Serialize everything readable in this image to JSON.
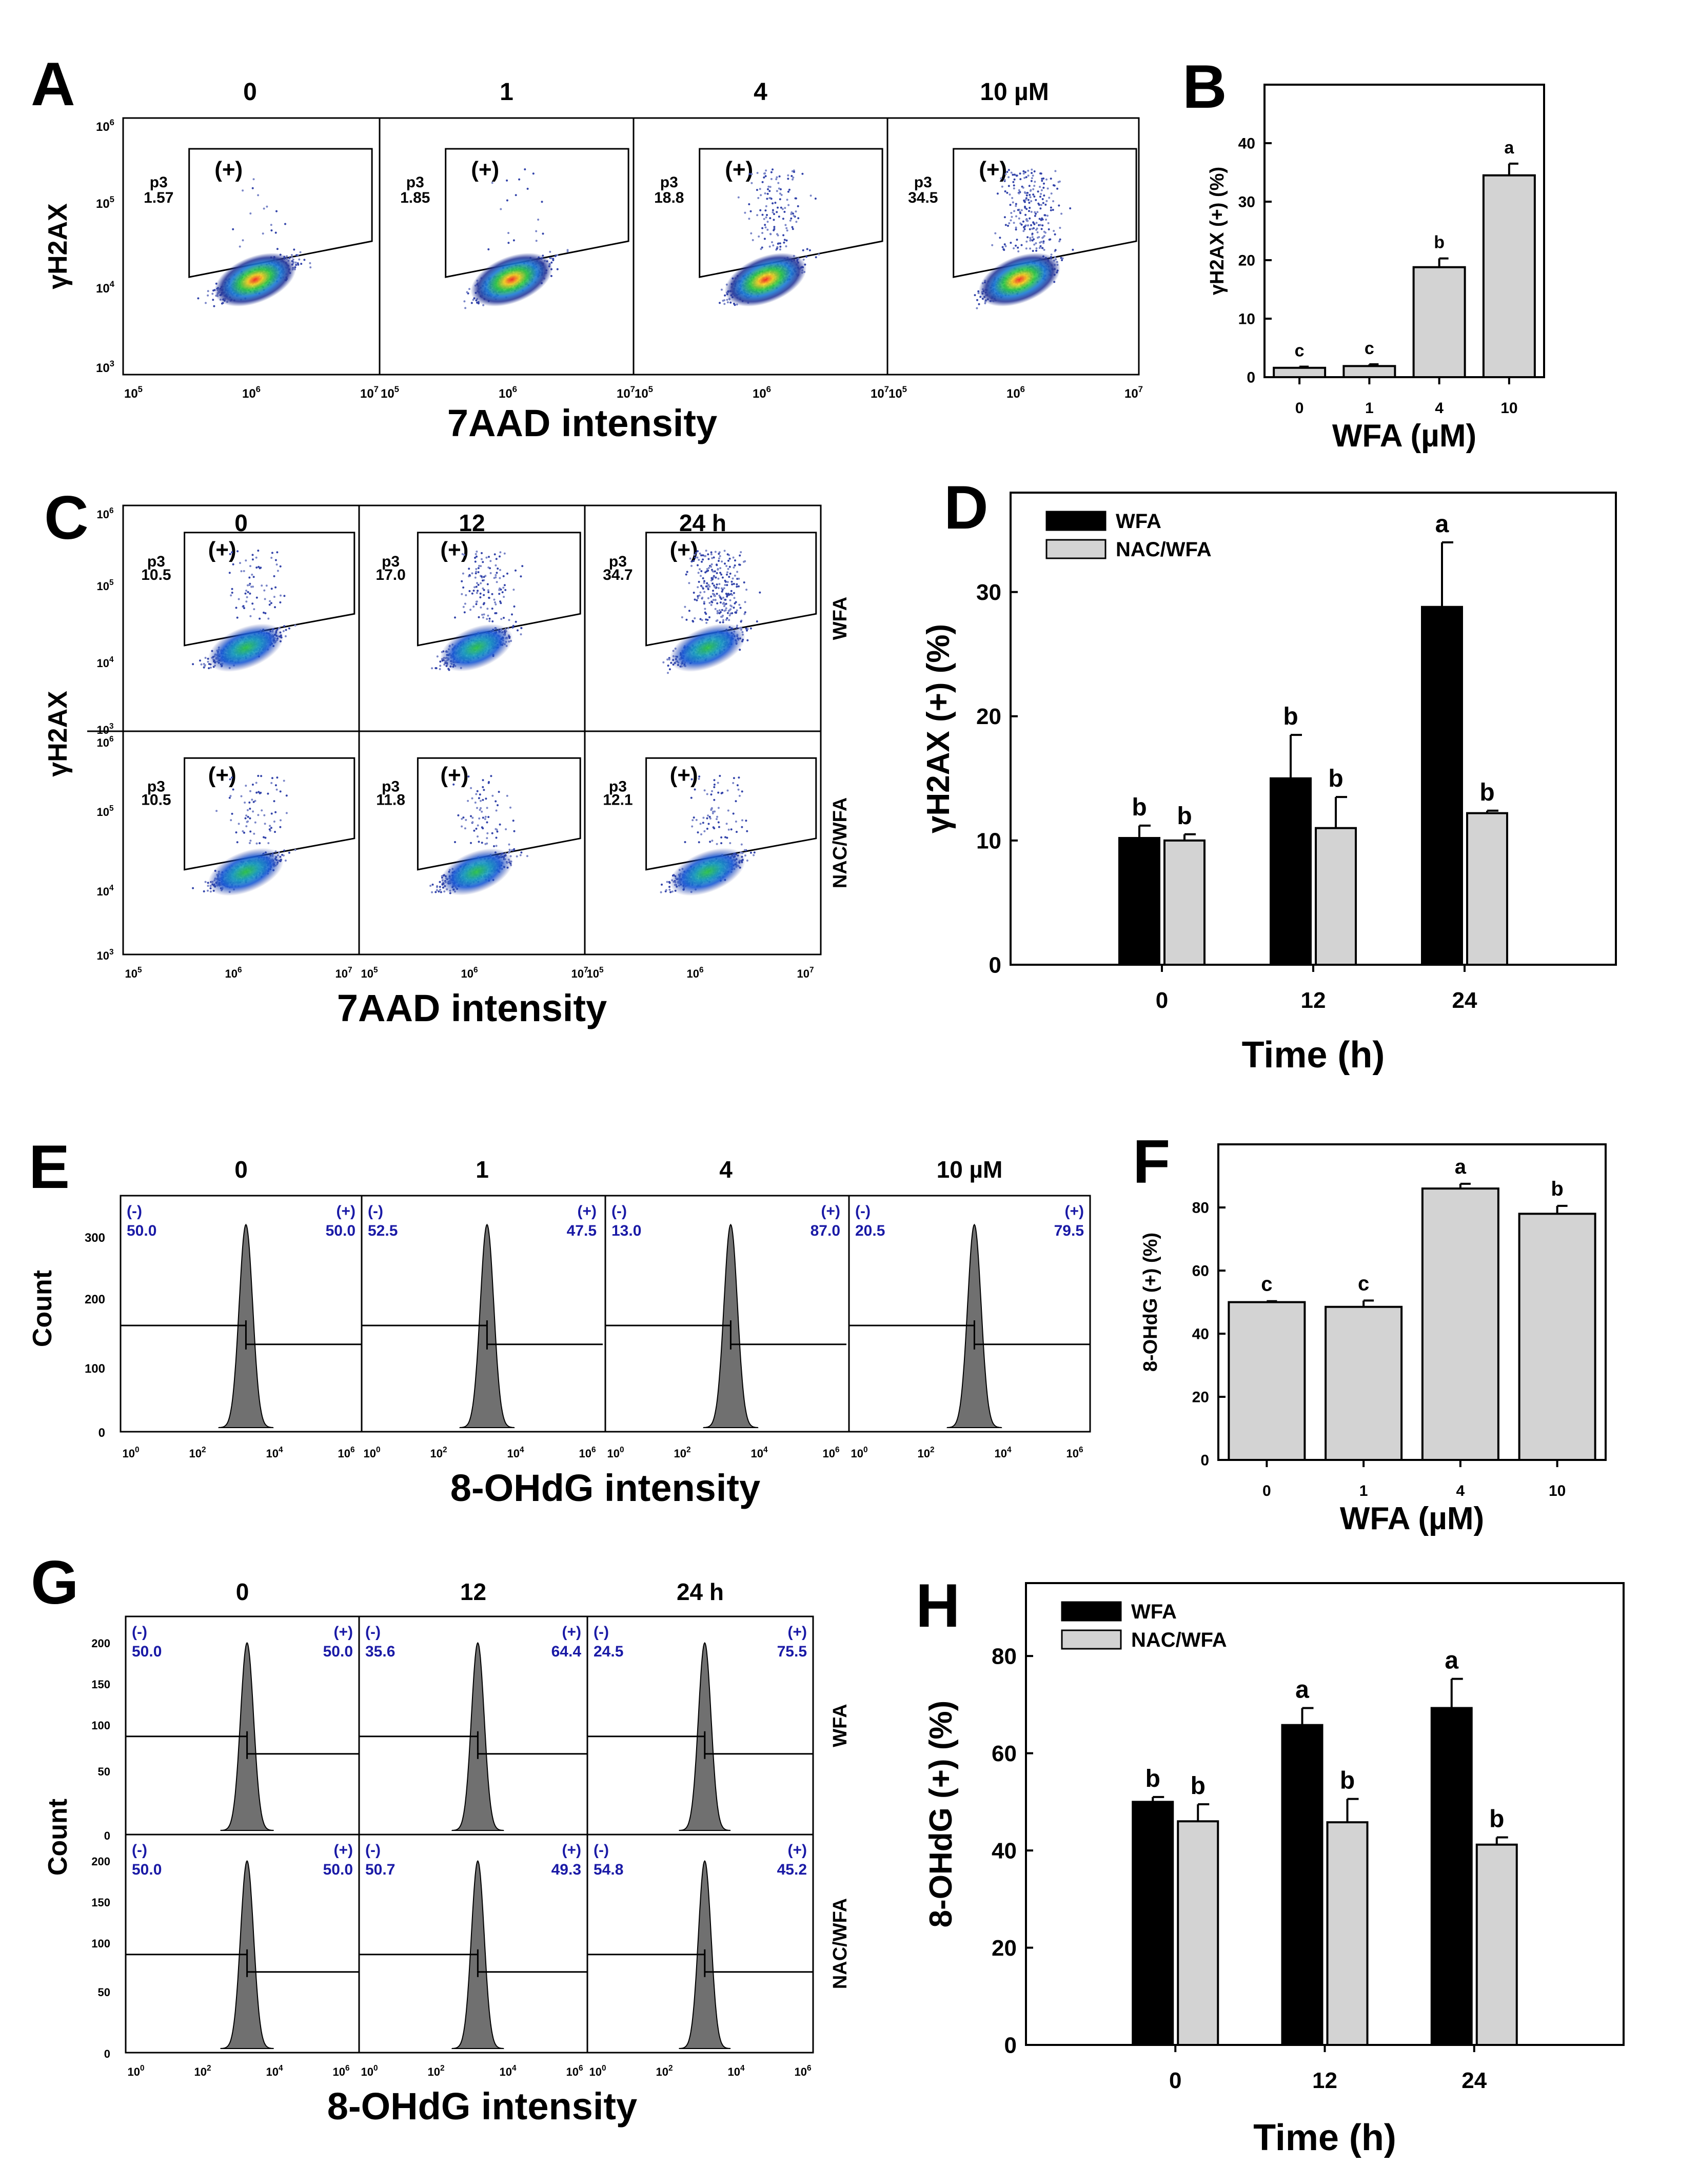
{
  "panel_letters": [
    "A",
    "B",
    "C",
    "D",
    "E",
    "F",
    "G",
    "H"
  ],
  "colors": {
    "black": "#000000",
    "gray": "#d3d3d3",
    "blue_text": "#1a1aa6",
    "hist_fill": "#707070"
  },
  "chart_data": [
    {
      "panel": "A",
      "type": "scatter",
      "title": "",
      "column_labels": [
        "0",
        "1",
        "4",
        "10 µM"
      ],
      "gate_label": "(+)",
      "gate_name": "p3",
      "gate_values": [
        "1.57",
        "1.85",
        "18.8",
        "34.5"
      ],
      "xlabel": "7AAD intensity",
      "ylabel": "γH2AX",
      "x_ticks": [
        "10",
        "10",
        "10"
      ],
      "x_tick_exps": [
        "5",
        "6",
        "7"
      ],
      "y_ticks": [
        "10",
        "10",
        "10",
        "10"
      ],
      "y_tick_exps": [
        "6",
        "5",
        "4",
        "3"
      ]
    },
    {
      "panel": "B",
      "type": "bar",
      "categories": [
        "0",
        "1",
        "4",
        "10"
      ],
      "values": [
        1.6,
        1.9,
        18.8,
        34.5
      ],
      "errors": [
        0.2,
        0.3,
        1.5,
        2.0
      ],
      "letters": [
        "c",
        "c",
        "b",
        "a"
      ],
      "xlabel": "WFA (µM)",
      "ylabel": "γH2AX (+) (%)",
      "ylim": [
        0,
        50
      ],
      "yticks": [
        "0",
        "10",
        "20",
        "30",
        "40"
      ]
    },
    {
      "panel": "C",
      "type": "scatter",
      "column_labels": [
        "0",
        "12",
        "24 h"
      ],
      "row_labels": [
        "WFA",
        "NAC/WFA"
      ],
      "gate_label": "(+)",
      "gate_name": "p3",
      "gate_values": [
        [
          "10.5",
          "17.0",
          "34.7"
        ],
        [
          "10.5",
          "11.8",
          "12.1"
        ]
      ],
      "xlabel": "7AAD intensity",
      "ylabel": "γH2AX",
      "x_ticks": [
        "10",
        "10",
        "10"
      ],
      "x_tick_exps": [
        "5",
        "6",
        "7"
      ],
      "y_ticks": [
        "10",
        "10",
        "10",
        "10"
      ],
      "y_tick_exps": [
        "6",
        "5",
        "4",
        "3"
      ]
    },
    {
      "panel": "D",
      "type": "bar",
      "categories": [
        "0",
        "12",
        "24"
      ],
      "series": [
        {
          "name": "WFA",
          "values": [
            10.2,
            15.0,
            28.8
          ],
          "errors": [
            1.0,
            3.5,
            5.2
          ],
          "letters": [
            "b",
            "b",
            "a"
          ]
        },
        {
          "name": "NAC/WFA",
          "values": [
            10.0,
            11.0,
            12.2
          ],
          "errors": [
            0.5,
            2.5,
            0.2
          ],
          "letters": [
            "b",
            "b",
            "b"
          ]
        }
      ],
      "xlabel": "Time (h)",
      "ylabel": "γH2AX (+) (%)",
      "ylim": [
        0,
        38
      ],
      "yticks": [
        "0",
        "10",
        "20",
        "30"
      ]
    },
    {
      "panel": "E",
      "type": "histogram",
      "column_labels": [
        "0",
        "1",
        "4",
        "10 µM"
      ],
      "neg_label": "(-)",
      "pos_label": "(+)",
      "neg_values": [
        "50.0",
        "52.5",
        "13.0",
        "20.5"
      ],
      "pos_values": [
        "50.0",
        "47.5",
        "87.0",
        "79.5"
      ],
      "xlabel": "8-OHdG intensity",
      "ylabel": "Count",
      "y_ticks": [
        "300",
        "200",
        "100",
        "0"
      ],
      "x_ticks": [
        "10",
        "10",
        "10",
        "10"
      ],
      "x_tick_exps": [
        "0",
        "2",
        "4",
        "6"
      ]
    },
    {
      "panel": "F",
      "type": "bar",
      "categories": [
        "0",
        "1",
        "4",
        "10"
      ],
      "values": [
        50.0,
        48.5,
        86.0,
        78.0
      ],
      "errors": [
        0.3,
        2.0,
        1.5,
        2.5
      ],
      "letters": [
        "c",
        "c",
        "a",
        "b"
      ],
      "xlabel": "WFA (µM)",
      "ylabel": "8-OHdG (+) (%)",
      "ylim": [
        0,
        100
      ],
      "yticks": [
        "0",
        "20",
        "40",
        "60",
        "80"
      ]
    },
    {
      "panel": "G",
      "type": "histogram",
      "column_labels": [
        "0",
        "12",
        "24 h"
      ],
      "row_labels": [
        "WFA",
        "NAC/WFA"
      ],
      "neg_label": "(-)",
      "pos_label": "(+)",
      "neg_values": [
        [
          "50.0",
          "35.6",
          "24.5"
        ],
        [
          "50.0",
          "50.7",
          "54.8"
        ]
      ],
      "pos_values": [
        [
          "50.0",
          "64.4",
          "75.5"
        ],
        [
          "50.0",
          "49.3",
          "45.2"
        ]
      ],
      "xlabel": "8-OHdG intensity",
      "ylabel": "Count",
      "y_ticks": [
        "200",
        "150",
        "100",
        "50",
        "0"
      ],
      "x_ticks": [
        "10",
        "10",
        "10",
        "10"
      ],
      "x_tick_exps": [
        "0",
        "2",
        "4",
        "6"
      ]
    },
    {
      "panel": "H",
      "type": "bar",
      "categories": [
        "0",
        "12",
        "24"
      ],
      "series": [
        {
          "name": "WFA",
          "values": [
            50.0,
            65.8,
            69.3
          ],
          "errors": [
            1.0,
            3.5,
            6.0
          ],
          "letters": [
            "b",
            "a",
            "a"
          ]
        },
        {
          "name": "NAC/WFA",
          "values": [
            46.0,
            45.8,
            41.2
          ],
          "errors": [
            3.5,
            4.8,
            1.5
          ],
          "letters": [
            "b",
            "b",
            "b"
          ]
        }
      ],
      "xlabel": "Time (h)",
      "ylabel": "8-OHdG (+) (%)",
      "ylim": [
        0,
        95
      ],
      "yticks": [
        "0",
        "20",
        "40",
        "60",
        "80"
      ]
    }
  ]
}
